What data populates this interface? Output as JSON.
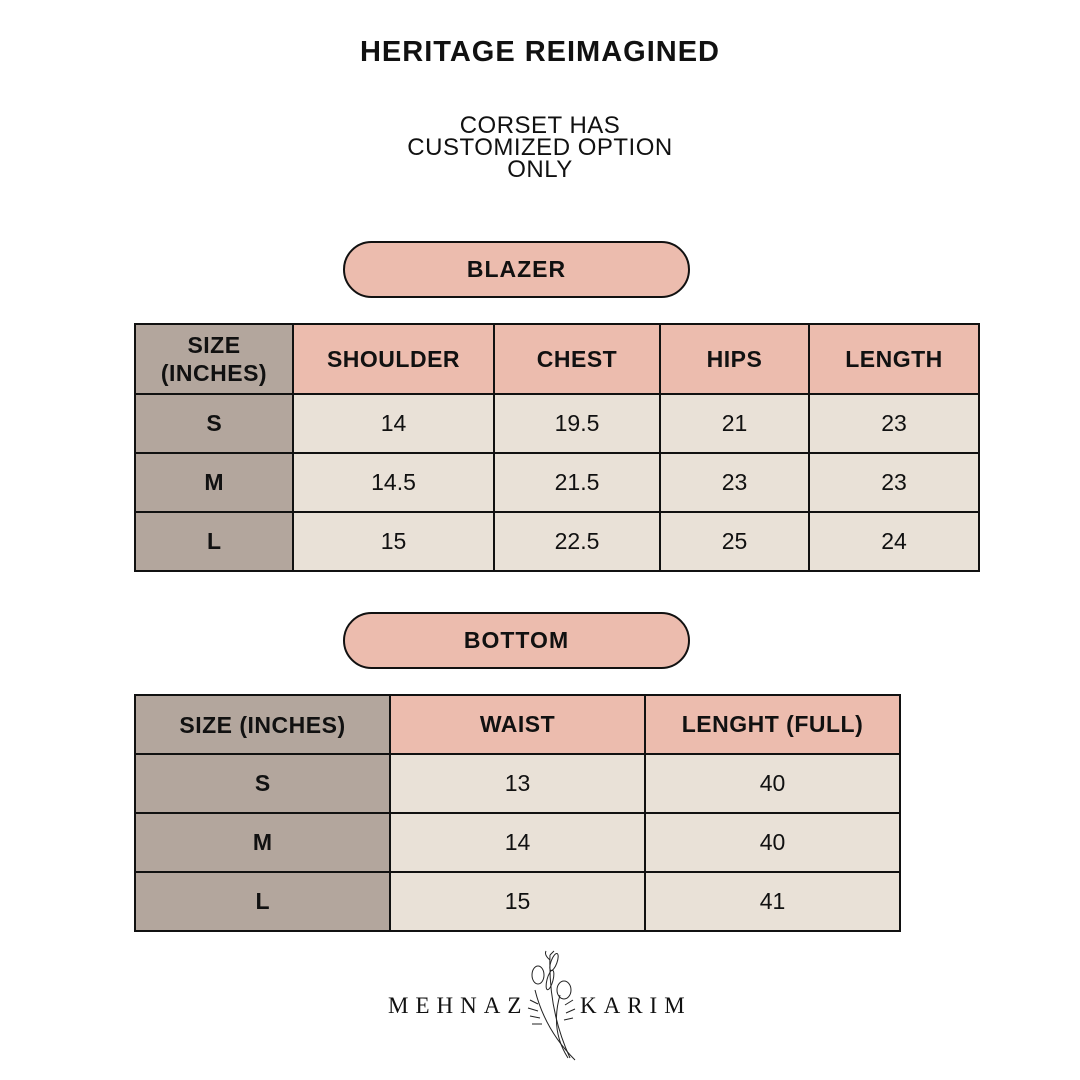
{
  "title": "HERITAGE REIMAGINED",
  "note": [
    "CORSET HAS",
    "CUSTOMIZED OPTION",
    "ONLY"
  ],
  "colors": {
    "size_column": "#b3a69d",
    "header": "#ecbcae",
    "cell": "#e9e1d7"
  },
  "blazer": {
    "label": "BLAZER",
    "headers": [
      "SIZE (INCHES)",
      "SHOULDER",
      "CHEST",
      "HIPS",
      "LENGTH"
    ],
    "rows": [
      [
        "S",
        "14",
        "19.5",
        "21",
        "23"
      ],
      [
        "M",
        "14.5",
        "21.5",
        "23",
        "23"
      ],
      [
        "L",
        "15",
        "22.5",
        "25",
        "24"
      ]
    ]
  },
  "bottom": {
    "label": "BOTTOM",
    "headers": [
      "SIZE (INCHES)",
      "WAIST",
      "LENGHT (FULL)"
    ],
    "rows": [
      [
        "S",
        "13",
        "40"
      ],
      [
        "M",
        "14",
        "40"
      ],
      [
        "L",
        "15",
        "41"
      ]
    ]
  },
  "logo": {
    "left": "MEHNAZ",
    "right": "KARIM"
  }
}
